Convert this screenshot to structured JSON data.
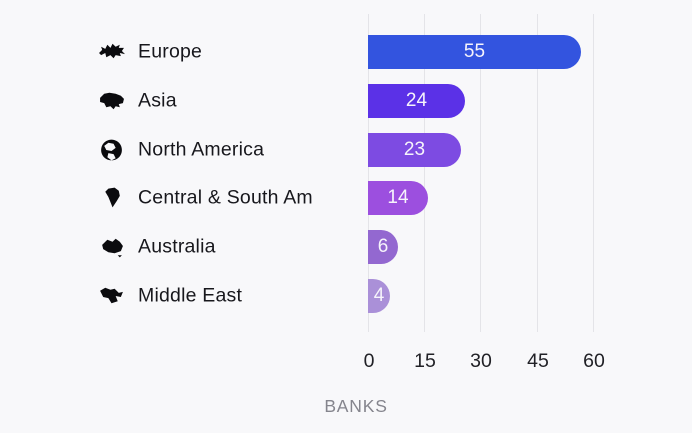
{
  "chart_data": {
    "type": "bar",
    "orientation": "horizontal",
    "title": "",
    "xlabel": "BANKS",
    "ylabel": "",
    "xlim": [
      0,
      60
    ],
    "x_ticks": [
      0,
      15,
      30,
      45,
      60
    ],
    "grid": "vertical-gridlines-only",
    "legend": "none",
    "categories": [
      "Europe",
      "Asia",
      "North America",
      "Central & South Am",
      "Australia",
      "Middle East"
    ],
    "values": [
      55,
      24,
      23,
      14,
      6,
      4
    ],
    "rows": [
      {
        "label": "Europe",
        "value": 55,
        "value_label": "55",
        "color": "#3354df",
        "icon": "europe-map-icon"
      },
      {
        "label": "Asia",
        "value": 24,
        "value_label": "24",
        "color": "#5b31e7",
        "icon": "asia-map-icon"
      },
      {
        "label": "North America",
        "value": 23,
        "value_label": "23",
        "color": "#7d4be2",
        "icon": "north-america-globe-icon"
      },
      {
        "label": "Central & South Am",
        "value": 14,
        "value_label": "14",
        "color": "#9c4fdf",
        "icon": "south-america-map-icon"
      },
      {
        "label": "Australia",
        "value": 6,
        "value_label": "6",
        "color": "#9368d0",
        "icon": "australia-map-icon"
      },
      {
        "label": "Middle East",
        "value": 4,
        "value_label": "4",
        "color": "#aa90d8",
        "icon": "middle-east-map-icon"
      }
    ]
  },
  "axis": {
    "tick_labels": [
      "0",
      "15",
      "30",
      "45",
      "60"
    ],
    "axis_label": "BANKS"
  },
  "colors": {
    "background": "#f8f8fa",
    "gridline": "#e4e4e8",
    "category_text": "#17171c",
    "tick_text": "#212126",
    "axis_label_text": "#85858d",
    "bar_value_text": "#f6f4fb"
  }
}
